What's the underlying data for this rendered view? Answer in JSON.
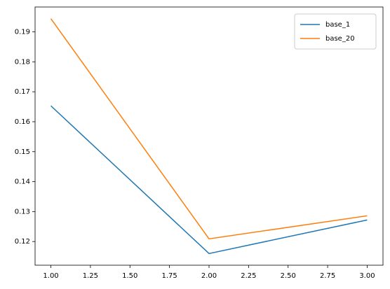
{
  "chart_data": {
    "type": "line",
    "x": [
      1,
      2,
      3
    ],
    "series": [
      {
        "name": "base_1",
        "color": "#1f77b4",
        "values": [
          0.1653,
          0.116,
          0.1272
        ]
      },
      {
        "name": "base_20",
        "color": "#ff7f0e",
        "values": [
          0.1944,
          0.1209,
          0.1286
        ]
      }
    ],
    "xlim": [
      0.9,
      3.1
    ],
    "xticks": [
      {
        "value": 1,
        "label": "1.00"
      },
      {
        "value": 1.25,
        "label": "1.25"
      },
      {
        "value": 1.5,
        "label": "1.50"
      },
      {
        "value": 1.75,
        "label": "1.75"
      },
      {
        "value": 2,
        "label": "2.00"
      },
      {
        "value": 2.25,
        "label": "2.25"
      },
      {
        "value": 2.5,
        "label": "2.50"
      },
      {
        "value": 2.75,
        "label": "2.75"
      },
      {
        "value": 3,
        "label": "3.00"
      }
    ],
    "ylim": [
      0.1121,
      0.1983
    ],
    "yticks": [
      0.12,
      0.13,
      0.14,
      0.15,
      0.16,
      0.17,
      0.18,
      0.19
    ],
    "legend": "upper right"
  }
}
